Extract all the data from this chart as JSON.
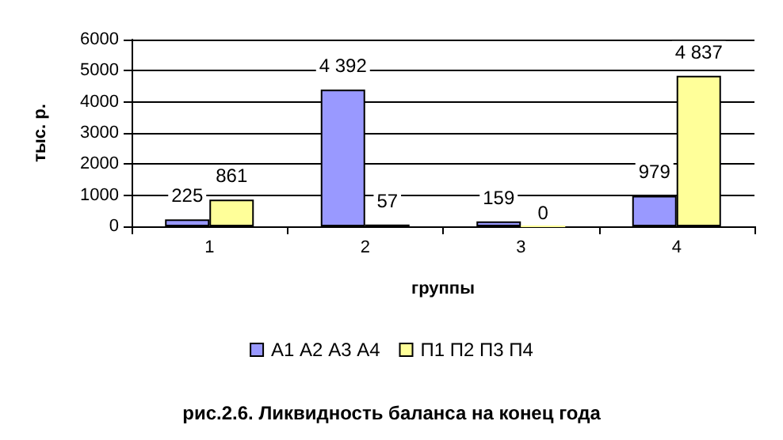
{
  "chart_data": {
    "type": "bar",
    "title": "рис.2.6. Ликвидность баланса на конец года",
    "xlabel": "группы",
    "ylabel": "тыс. р.",
    "categories": [
      "1",
      "2",
      "3",
      "4"
    ],
    "series": [
      {
        "name": "А1 А2 А3 А4",
        "color": "#9999ff",
        "values": [
          225,
          4392,
          159,
          979
        ],
        "value_labels": [
          "225",
          "4 392",
          "159",
          "979"
        ]
      },
      {
        "name": "П1 П2 П3 П4",
        "color": "#ffff99",
        "values": [
          861,
          57,
          0,
          4837
        ],
        "value_labels": [
          "861",
          "57",
          "0",
          "4 837"
        ]
      }
    ],
    "ylim": [
      0,
      6000
    ],
    "yticks": [
      0,
      1000,
      2000,
      3000,
      4000,
      5000,
      6000
    ],
    "grid": "y",
    "legend": "bottom"
  }
}
